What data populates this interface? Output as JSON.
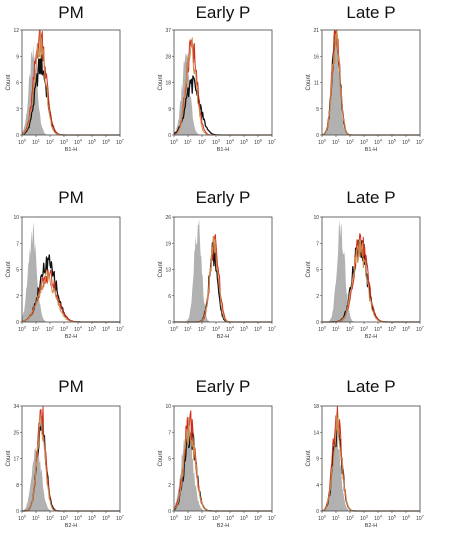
{
  "chart_data": [
    {
      "type": "area",
      "title": "PM",
      "ylabel": "Count",
      "xlabel": "B1-H",
      "xscale": "log",
      "xlim": [
        1,
        10000000
      ],
      "ylim": [
        0,
        12
      ],
      "yticks": [
        "0",
        "3",
        "6",
        "9",
        "12"
      ],
      "xticks": [
        "10^0",
        "10^1",
        "10^2",
        "10^3",
        "10^4",
        "10^5",
        "10^6",
        "10^7"
      ],
      "series": [
        {
          "color": "#a8a8a8",
          "fill": true,
          "peak_log": 0.8,
          "peak": 9,
          "width": 0.3
        },
        {
          "color": "#111111",
          "peak_log": 1.35,
          "peak": 8,
          "width": 0.42
        },
        {
          "color": "#d42a1c",
          "peak_log": 1.3,
          "peak": 11.5,
          "width": 0.42
        },
        {
          "color": "#c98a4b",
          "peak_log": 1.28,
          "peak": 10.5,
          "width": 0.4
        }
      ]
    },
    {
      "type": "area",
      "title": "Early P",
      "ylabel": "Count",
      "xlabel": "B1-H",
      "xscale": "log",
      "xlim": [
        1,
        10000000
      ],
      "ylim": [
        0,
        37
      ],
      "yticks": [
        "0",
        "9",
        "18",
        "28",
        "37"
      ],
      "xticks": [
        "10^0",
        "10^1",
        "10^2",
        "10^3",
        "10^4",
        "10^5",
        "10^6",
        "10^7"
      ],
      "series": [
        {
          "color": "#a8a8a8",
          "fill": true,
          "peak_log": 0.85,
          "peak": 26,
          "width": 0.3
        },
        {
          "color": "#111111",
          "peak_log": 1.35,
          "peak": 18,
          "width": 0.5
        },
        {
          "color": "#d42a1c",
          "peak_log": 1.25,
          "peak": 32,
          "width": 0.38
        },
        {
          "color": "#c98a4b",
          "peak_log": 1.22,
          "peak": 30,
          "width": 0.36
        }
      ]
    },
    {
      "type": "area",
      "title": "Late P",
      "ylabel": "Count",
      "xlabel": "B1-H",
      "xscale": "log",
      "xlim": [
        1,
        10000000
      ],
      "ylim": [
        0,
        21
      ],
      "yticks": [
        "0",
        "5",
        "11",
        "16",
        "21"
      ],
      "xticks": [
        "10^0",
        "10^1",
        "10^2",
        "10^3",
        "10^4",
        "10^5",
        "10^6",
        "10^7"
      ],
      "series": [
        {
          "color": "#a8a8a8",
          "fill": true,
          "peak_log": 0.95,
          "peak": 19,
          "width": 0.28
        },
        {
          "color": "#111111",
          "peak_log": 1.0,
          "peak": 19,
          "width": 0.28
        },
        {
          "color": "#d42a1c",
          "peak_log": 1.0,
          "peak": 20,
          "width": 0.28
        },
        {
          "color": "#c98a4b",
          "peak_log": 1.02,
          "peak": 19,
          "width": 0.28
        }
      ]
    },
    {
      "type": "area",
      "title": "PM",
      "ylabel": "Count",
      "xlabel": "B2-H",
      "xscale": "log",
      "xlim": [
        1,
        10000000
      ],
      "ylim": [
        0,
        10
      ],
      "yticks": [
        "0",
        "2",
        "5",
        "7",
        "10"
      ],
      "xticks": [
        "10^0",
        "10^1",
        "10^2",
        "10^3",
        "10^4",
        "10^5",
        "10^6",
        "10^7"
      ],
      "series": [
        {
          "color": "#a8a8a8",
          "fill": true,
          "peak_log": 0.75,
          "peak": 8.5,
          "width": 0.3
        },
        {
          "color": "#111111",
          "peak_log": 1.85,
          "peak": 5.5,
          "width": 0.6
        },
        {
          "color": "#d42a1c",
          "peak_log": 1.85,
          "peak": 4.5,
          "width": 0.62
        },
        {
          "color": "#c98a4b",
          "peak_log": 1.8,
          "peak": 4.2,
          "width": 0.6
        }
      ]
    },
    {
      "type": "area",
      "title": "Early P",
      "ylabel": "Count",
      "xlabel": "B2-H",
      "xscale": "log",
      "xlim": [
        1,
        10000000
      ],
      "ylim": [
        0,
        26
      ],
      "yticks": [
        "0",
        "6",
        "13",
        "19",
        "26"
      ],
      "xticks": [
        "10^0",
        "10^1",
        "10^2",
        "10^3",
        "10^4",
        "10^5",
        "10^6",
        "10^7"
      ],
      "series": [
        {
          "color": "#a8a8a8",
          "fill": true,
          "peak_log": 1.7,
          "peak": 24,
          "width": 0.26
        },
        {
          "color": "#111111",
          "peak_log": 2.8,
          "peak": 17,
          "width": 0.3
        },
        {
          "color": "#d42a1c",
          "peak_log": 2.9,
          "peak": 21,
          "width": 0.3
        },
        {
          "color": "#c98a4b",
          "peak_log": 2.85,
          "peak": 19,
          "width": 0.3
        }
      ]
    },
    {
      "type": "area",
      "title": "Late P",
      "ylabel": "Count",
      "xlabel": "B2-H",
      "xscale": "log",
      "xlim": [
        1,
        10000000
      ],
      "ylim": [
        0,
        10
      ],
      "yticks": [
        "0",
        "2",
        "5",
        "7",
        "10"
      ],
      "xticks": [
        "10^0",
        "10^1",
        "10^2",
        "10^3",
        "10^4",
        "10^5",
        "10^6",
        "10^7"
      ],
      "series": [
        {
          "color": "#a8a8a8",
          "fill": true,
          "peak_log": 1.35,
          "peak": 9,
          "width": 0.28
        },
        {
          "color": "#111111",
          "peak_log": 2.7,
          "peak": 7.5,
          "width": 0.5
        },
        {
          "color": "#d42a1c",
          "peak_log": 2.75,
          "peak": 7.8,
          "width": 0.48
        },
        {
          "color": "#c98a4b",
          "peak_log": 2.7,
          "peak": 7.0,
          "width": 0.48
        }
      ]
    },
    {
      "type": "area",
      "title": "PM",
      "ylabel": "Count",
      "xlabel": "B2-H",
      "xscale": "log",
      "xlim": [
        1,
        10000000
      ],
      "ylim": [
        0,
        34
      ],
      "yticks": [
        "0",
        "8",
        "17",
        "25",
        "34"
      ],
      "xticks": [
        "10^0",
        "10^1",
        "10^2",
        "10^3",
        "10^4",
        "10^5",
        "10^6",
        "10^7"
      ],
      "series": [
        {
          "color": "#a8a8a8",
          "fill": true,
          "peak_log": 1.05,
          "peak": 22,
          "width": 0.32
        },
        {
          "color": "#111111",
          "peak_log": 1.4,
          "peak": 27,
          "width": 0.32
        },
        {
          "color": "#d42a1c",
          "peak_log": 1.38,
          "peak": 31,
          "width": 0.3
        },
        {
          "color": "#c98a4b",
          "peak_log": 1.36,
          "peak": 29,
          "width": 0.3
        }
      ]
    },
    {
      "type": "area",
      "title": "Early P",
      "ylabel": "Count",
      "xlabel": "B2-H",
      "xscale": "log",
      "xlim": [
        1,
        10000000
      ],
      "ylim": [
        0,
        10
      ],
      "yticks": [
        "0",
        "2",
        "5",
        "7",
        "10"
      ],
      "xticks": [
        "10^0",
        "10^1",
        "10^2",
        "10^3",
        "10^4",
        "10^5",
        "10^6",
        "10^7"
      ],
      "series": [
        {
          "color": "#a8a8a8",
          "fill": true,
          "peak_log": 0.95,
          "peak": 8,
          "width": 0.38
        },
        {
          "color": "#111111",
          "peak_log": 1.15,
          "peak": 7.5,
          "width": 0.4
        },
        {
          "color": "#d42a1c",
          "peak_log": 1.1,
          "peak": 8.5,
          "width": 0.4
        },
        {
          "color": "#c98a4b",
          "peak_log": 1.12,
          "peak": 7.8,
          "width": 0.4
        }
      ]
    },
    {
      "type": "area",
      "title": "Late P",
      "ylabel": "Count",
      "xlabel": "B2-H",
      "xscale": "log",
      "xlim": [
        1,
        10000000
      ],
      "ylim": [
        0,
        18
      ],
      "yticks": [
        "0",
        "4",
        "9",
        "14",
        "18"
      ],
      "xticks": [
        "10^0",
        "10^1",
        "10^2",
        "10^3",
        "10^4",
        "10^5",
        "10^6",
        "10^7"
      ],
      "series": [
        {
          "color": "#a8a8a8",
          "fill": true,
          "peak_log": 1.0,
          "peak": 14,
          "width": 0.3
        },
        {
          "color": "#111111",
          "peak_log": 1.1,
          "peak": 14,
          "width": 0.32
        },
        {
          "color": "#d42a1c",
          "peak_log": 1.08,
          "peak": 15.5,
          "width": 0.32
        },
        {
          "color": "#c98a4b",
          "peak_log": 1.1,
          "peak": 14.5,
          "width": 0.32
        }
      ]
    }
  ]
}
